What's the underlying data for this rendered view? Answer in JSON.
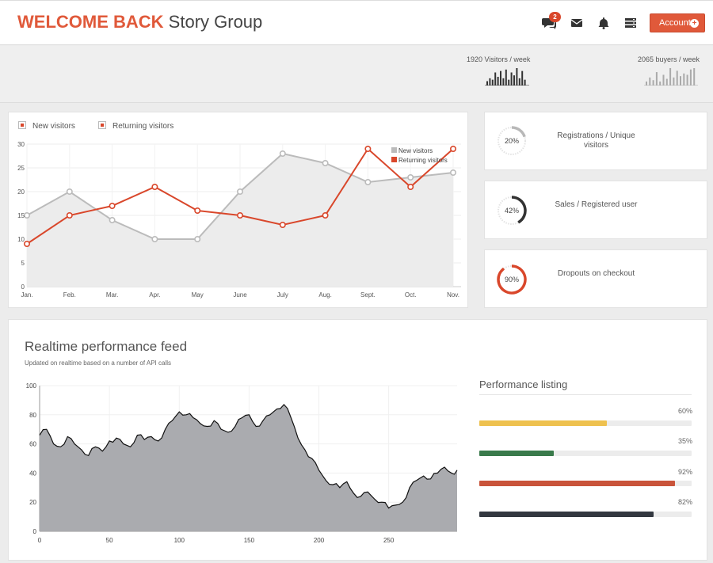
{
  "header": {
    "brand_strong": "WELCOME BACK",
    "brand_light": "Story Group",
    "comments_badge": "2",
    "account_label": "Account",
    "icons": [
      "comments-icon",
      "envelope-icon",
      "bell-icon",
      "server-icon",
      "plus-circle-icon"
    ]
  },
  "stats": [
    {
      "label": "1920 Visitors / week",
      "bars": [
        3,
        5,
        4,
        9,
        6,
        10,
        5,
        11,
        4,
        9,
        7,
        12,
        5,
        10,
        4
      ]
    },
    {
      "label": "2065 buyers / week",
      "bars": [
        3,
        6,
        4,
        10,
        3,
        8,
        5,
        13,
        6,
        11,
        7,
        9,
        8,
        12,
        13
      ]
    }
  ],
  "colors": {
    "accent": "#e0593a",
    "new_visitors": "#bbbbbb",
    "returning_visitors": "#d9472b"
  },
  "visitors_chart": {
    "legend_new": "New visitors",
    "legend_returning": "Returning visitors",
    "inner_legend_new": "New visitors",
    "inner_legend_returning": "Returning visitors"
  },
  "kpis": [
    {
      "pct_label": "20%",
      "value": 20,
      "label": "Registrations / Unique visitors",
      "color": "#b8b8b8"
    },
    {
      "pct_label": "42%",
      "value": 42,
      "label": "Sales / Registered user",
      "color": "#333333"
    },
    {
      "pct_label": "90%",
      "value": 90,
      "label": "Dropouts on checkout",
      "color": "#d9472b"
    }
  ],
  "feed": {
    "title": "Realtime performance feed",
    "subtitle": "Updated on realtime based on a number of API calls"
  },
  "performance": {
    "title": "Performance listing",
    "items": [
      {
        "value_label": "60%",
        "value": 60,
        "color": "#eec14f"
      },
      {
        "value_label": "35%",
        "value": 35,
        "color": "#3a7a4b"
      },
      {
        "value_label": "92%",
        "value": 92,
        "color": "#c9543a"
      },
      {
        "value_label": "82%",
        "value": 82,
        "color": "#333840"
      }
    ]
  },
  "chart_data": [
    {
      "type": "line",
      "categories": [
        "Jan.",
        "Feb.",
        "Mar.",
        "Apr.",
        "May",
        "June",
        "July",
        "Aug.",
        "Sept.",
        "Oct.",
        "Nov."
      ],
      "series": [
        {
          "name": "New visitors",
          "values": [
            15,
            20,
            14,
            10,
            10,
            20,
            28,
            26,
            22,
            23,
            24
          ]
        },
        {
          "name": "Returning visitors",
          "values": [
            9,
            15,
            17,
            21,
            16,
            15,
            13,
            15,
            29,
            21,
            29
          ]
        }
      ],
      "yticks": [
        "0",
        "5",
        "10",
        "15",
        "20",
        "25",
        "30"
      ],
      "ylim": [
        0,
        30
      ],
      "grid": true,
      "legend": "top-right"
    },
    {
      "type": "area",
      "x_ticks": [
        "0",
        "50",
        "100",
        "150",
        "200",
        "250"
      ],
      "y_ticks": [
        "0",
        "20",
        "40",
        "60",
        "80",
        "100"
      ],
      "xlim": [
        0,
        299
      ],
      "ylim": [
        0,
        100
      ],
      "x": [
        0,
        5,
        10,
        15,
        20,
        25,
        30,
        35,
        40,
        45,
        50,
        55,
        60,
        65,
        70,
        75,
        80,
        85,
        90,
        95,
        100,
        105,
        110,
        115,
        120,
        125,
        130,
        135,
        140,
        145,
        150,
        155,
        160,
        165,
        170,
        175,
        180,
        185,
        190,
        195,
        200,
        205,
        210,
        215,
        220,
        225,
        230,
        235,
        240,
        245,
        250,
        255,
        260,
        265,
        270,
        275,
        280,
        285,
        290,
        295,
        299
      ],
      "values": [
        66,
        70,
        60,
        58,
        65,
        60,
        56,
        52,
        58,
        55,
        62,
        64,
        60,
        58,
        66,
        63,
        65,
        62,
        70,
        76,
        82,
        80,
        78,
        74,
        72,
        76,
        70,
        68,
        72,
        78,
        80,
        72,
        76,
        80,
        84,
        87,
        78,
        64,
        56,
        50,
        42,
        35,
        32,
        30,
        34,
        26,
        24,
        27,
        22,
        20,
        16,
        18,
        20,
        30,
        35,
        38,
        36,
        40,
        44,
        40,
        42
      ],
      "grid": true
    }
  ]
}
